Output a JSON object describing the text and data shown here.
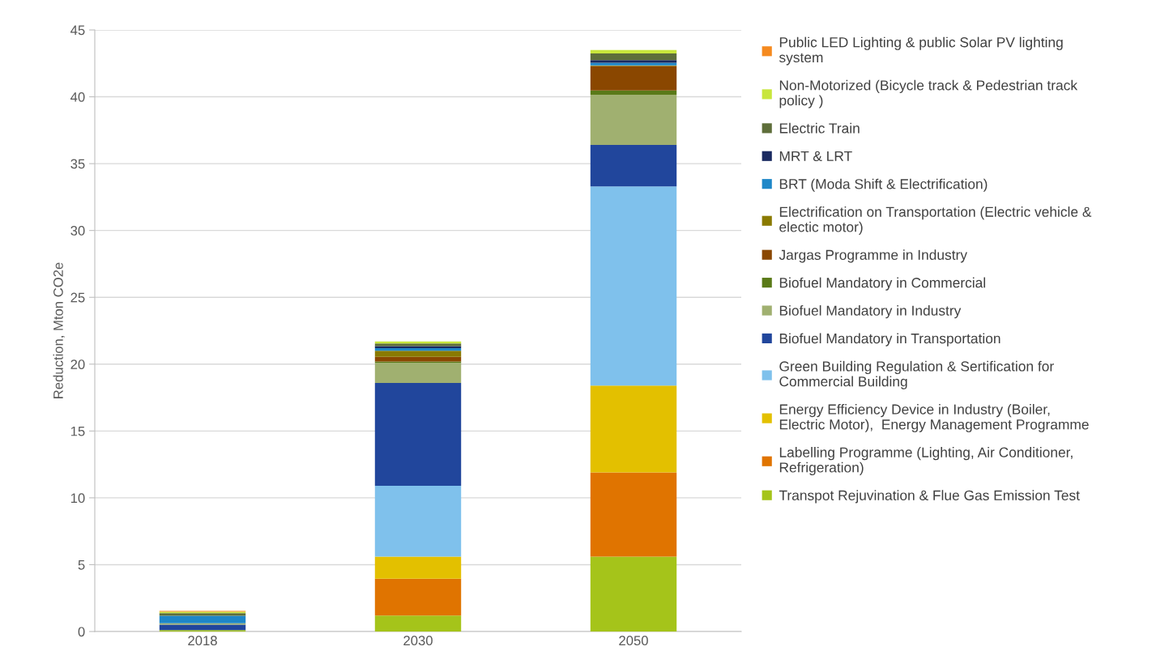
{
  "chart_data": {
    "type": "bar",
    "stacked": true,
    "ylabel": "Reduction, Mton CO2e",
    "categories": [
      "2018",
      "2030",
      "2050"
    ],
    "ylim": [
      0,
      45
    ],
    "yticks": [
      0,
      5,
      10,
      15,
      20,
      25,
      30,
      35,
      40,
      45
    ],
    "grid": "y",
    "legend": "right",
    "series": [
      {
        "name": "Transpot Rejuvination & Flue Gas Emission Test",
        "color": "#a5c41a",
        "values": [
          0.1,
          1.2,
          5.6
        ]
      },
      {
        "name": "Labelling Programme (Lighting, Air Conditioner,\nRefrigeration)",
        "color": "#e07400",
        "values": [
          0,
          2.75,
          6.3
        ]
      },
      {
        "name": "Energy Efficiency Device in Industry (Boiler,\nElectric Motor),  Energy Management Programme",
        "color": "#e3c000",
        "values": [
          0,
          1.65,
          6.5
        ]
      },
      {
        "name": "Green Building Regulation & Sertification for\nCommercial Building",
        "color": "#7fc1ec",
        "values": [
          0,
          5.3,
          14.9
        ]
      },
      {
        "name": "Biofuel Mandatory in Transportation",
        "color": "#21469c",
        "values": [
          0.42,
          7.7,
          3.1
        ]
      },
      {
        "name": "Biofuel Mandatory in Industry",
        "color": "#a0b070",
        "values": [
          0.1,
          1.5,
          3.76
        ]
      },
      {
        "name": "Biofuel Mandatory in Commercial",
        "color": "#5a7a18",
        "values": [
          0,
          0.1,
          0.32
        ]
      },
      {
        "name": "Jargas Programme in Industry",
        "color": "#8a4700",
        "values": [
          0,
          0.35,
          1.82
        ]
      },
      {
        "name": "Electrification on Transportation (Electric vehicle &\nelectic motor)",
        "color": "#8a7a00",
        "values": [
          0,
          0.45,
          0.05
        ]
      },
      {
        "name": "BRT (Moda Shift & Electrification)",
        "color": "#1e87c8",
        "values": [
          0.56,
          0.2,
          0.2
        ]
      },
      {
        "name": "MRT & LRT",
        "color": "#1a2a60",
        "values": [
          0,
          0.15,
          0.2
        ]
      },
      {
        "name": "Electric Train",
        "color": "#5e6e3a",
        "values": [
          0.2,
          0.2,
          0.5
        ]
      },
      {
        "name": "Non-Motorized (Bicycle track & Pedestrian track\npolicy )",
        "color": "#c8e63c",
        "values": [
          0.1,
          0.15,
          0.25
        ]
      },
      {
        "name": "Public LED Lighting & public Solar PV lighting\nsystem",
        "color": "#f58a1f",
        "values": [
          0.06,
          0,
          0
        ]
      }
    ]
  }
}
